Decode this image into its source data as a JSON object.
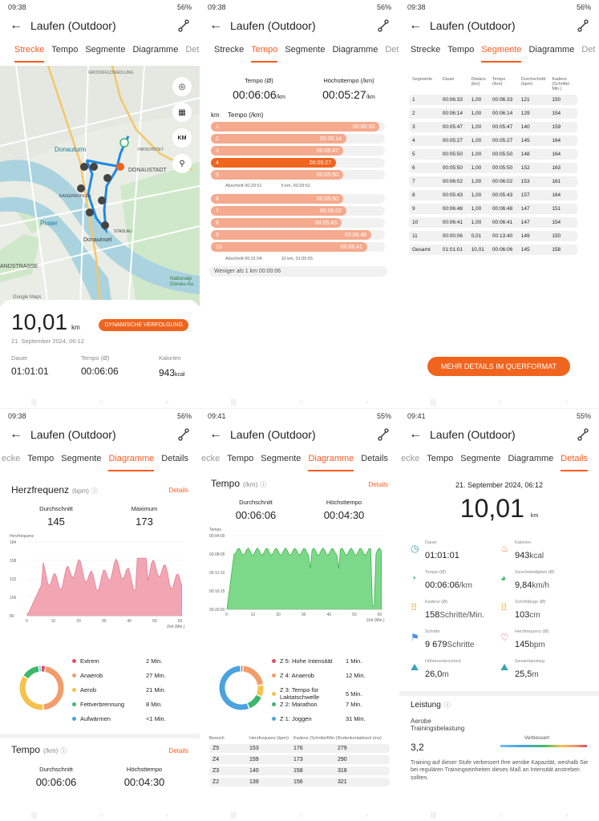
{
  "common": {
    "title": "Laufen (Outdoor)"
  },
  "p1": {
    "status_time": "09:38",
    "status_right": "56%",
    "tabs": [
      "Strecke",
      "Tempo",
      "Segmente",
      "Diagramme",
      "Deta"
    ],
    "map_labels": [
      "GROSSFELDSIEDLUNG",
      "Donauturm",
      "DONAUSTADT",
      "HIRSCHSTET",
      "KAISERMÜHLEN",
      "Prater",
      "STADLAU",
      "Donauinsel",
      "ANDSTRASSE",
      "Nationalp Donau-Au",
      "Google Maps"
    ],
    "map_icon_labels": [
      "KM"
    ],
    "distance": "10,01",
    "distance_unit": "km",
    "track_button": "DYNAMISCHE VERFOLGUNG",
    "date": "21. September 2024, 06:12",
    "stats": [
      {
        "label": "Dauer",
        "value": "01:01:01",
        "unit": ""
      },
      {
        "label": "Tempo (Ø)",
        "value": "00:06:06",
        "unit": ""
      },
      {
        "label": "Kalorien",
        "value": "943",
        "unit": "kcal"
      }
    ]
  },
  "p2": {
    "status_time": "09:38",
    "status_right": "56%",
    "tabs": [
      "Strecke",
      "Tempo",
      "Segmente",
      "Diagramme",
      "Det"
    ],
    "avg_label": "Tempo (Ø)",
    "avg_value": "00:06:06",
    "avg_unit": "/km",
    "max_label": "Höchsttempo (/km)",
    "max_value": "00:05:27",
    "max_unit": "/km",
    "col_km": "km",
    "col_tempo": "Tempo (/km)",
    "rows_a": [
      {
        "n": "1",
        "t": "00:06:33",
        "frac": 0.97
      },
      {
        "n": "2",
        "t": "00:06:14",
        "frac": 0.78
      },
      {
        "n": "3",
        "t": "00:05:47",
        "frac": 0.76
      },
      {
        "n": "4",
        "t": "00:05:27",
        "frac": 0.72
      },
      {
        "n": "5",
        "t": "00:05:50",
        "frac": 0.76
      }
    ],
    "sub_a": [
      "Abschnitt 00:29:51",
      "5 km, 00:29:51"
    ],
    "rows_b": [
      {
        "n": "6",
        "t": "00:05:50",
        "frac": 0.76
      },
      {
        "n": "7",
        "t": "00:06:02",
        "frac": 0.78
      },
      {
        "n": "8",
        "t": "00:05:43",
        "frac": 0.75
      },
      {
        "n": "9",
        "t": "00:06:48",
        "frac": 0.92
      },
      {
        "n": "10",
        "t": "00:06:41",
        "frac": 0.9
      }
    ],
    "sub_b": [
      "Abschnitt 00:31:04",
      "10 km, 01:00:55"
    ],
    "footer": "Weniger als 1 km 00:00:06"
  },
  "p3": {
    "status_time": "09:38",
    "status_right": "56%",
    "tabs": [
      "Strecke",
      "Tempo",
      "Segmente",
      "Diagramme",
      "Det"
    ],
    "headers": [
      "Segmente",
      "Dauer",
      "Distanz (km)",
      "Tempo (/km)",
      "Durchschnitt (bpm)",
      "Kadenz (Schritte/ Min.)"
    ],
    "rows": [
      [
        "1",
        "00:06:33",
        "1,00",
        "00:06:33",
        "121",
        "150"
      ],
      [
        "2",
        "00:06:14",
        "1,00",
        "00:06:14",
        "129",
        "154"
      ],
      [
        "3",
        "00:05:47",
        "1,00",
        "00:05:47",
        "140",
        "159"
      ],
      [
        "4",
        "00:05:27",
        "1,00",
        "00:05:27",
        "145",
        "164"
      ],
      [
        "5",
        "00:05:50",
        "1,00",
        "00:05:50",
        "148",
        "164"
      ],
      [
        "6",
        "00:05:50",
        "1,00",
        "00:05:50",
        "152",
        "163"
      ],
      [
        "7",
        "00:06:02",
        "1,00",
        "00:06:02",
        "153",
        "161"
      ],
      [
        "8",
        "00:05:43",
        "1,00",
        "00:05:43",
        "157",
        "164"
      ],
      [
        "9",
        "00:06:48",
        "1,00",
        "00:06:48",
        "147",
        "151"
      ],
      [
        "10",
        "00:06:41",
        "1,00",
        "00:06:41",
        "147",
        "154"
      ],
      [
        "11",
        "00:00:06",
        "0,01",
        "00:13:40",
        "149",
        "150"
      ],
      [
        "Gesamt",
        "01:01:01",
        "10,01",
        "00:06:06",
        "145",
        "158"
      ]
    ],
    "button": "MEHR DETAILS IM QUERFORMAT"
  },
  "p4": {
    "status_time": "09:38",
    "status_right": "56%",
    "tabs": [
      "ecke",
      "Tempo",
      "Segmente",
      "Diagramme",
      "Details"
    ],
    "hr_title": "Herzfrequenz",
    "hr_unit": "(bpm)",
    "details": "Details",
    "avg_label": "Durchschnitt",
    "avg_value": "145",
    "max_label": "Maximum",
    "max_value": "173",
    "chart_ylabel": "Herzfrequenz",
    "chart_xlabel": "Zeit (Min.)",
    "zones": [
      {
        "name": "Extrem",
        "value": "2 Min.",
        "color": "#e84a5f"
      },
      {
        "name": "Anaerob",
        "value": "27 Min.",
        "color": "#f39c6b"
      },
      {
        "name": "Aerob",
        "value": "21 Min.",
        "color": "#f5c24c"
      },
      {
        "name": "Fettverbrennung",
        "value": "8 Min.",
        "color": "#3db86b"
      },
      {
        "name": "Aufwärmen",
        "value": "<1 Min.",
        "color": "#4aa3df"
      }
    ],
    "tempo_title": "Tempo",
    "tempo_unit": "(/km)",
    "t_avg_label": "Durchschnitt",
    "t_avg_value": "00:06:06",
    "t_max_label": "Höchsttempo",
    "t_max_value": "00:04:30"
  },
  "p5": {
    "status_time": "09:41",
    "status_right": "55%",
    "tabs": [
      "ecke",
      "Tempo",
      "Segmente",
      "Diagramme",
      "Details"
    ],
    "title": "Tempo",
    "unit": "(/km)",
    "details": "Details",
    "avg_label": "Durchschnitt",
    "avg_value": "00:06:06",
    "max_label": "Höchsttempo",
    "max_value": "00:04:30",
    "chart_ylabel": "Tempo",
    "chart_xlabel": "Zeit (Min.)",
    "zones": [
      {
        "name": "Z 5: Hohe Intensität",
        "value": "1 Min.",
        "color": "#e84a5f"
      },
      {
        "name": "Z 4: Anaerob",
        "value": "12 Min.",
        "color": "#f39c6b"
      },
      {
        "name": "Z 3: Tempo für Laktatschwelle",
        "value": "5 Min.",
        "color": "#f5c24c"
      },
      {
        "name": "Z 2: Marathon",
        "value": "7 Min.",
        "color": "#3db86b"
      },
      {
        "name": "Z 1: Joggen",
        "value": "31 Min.",
        "color": "#4aa3df"
      }
    ],
    "table_headers": [
      "Bereich",
      "Herzfrequenz (bpm)",
      "Kadenz (Schritte/Min.)",
      "Bodenkontaktzeit (ms)"
    ],
    "table_rows": [
      [
        "Z5",
        "153",
        "176",
        "279"
      ],
      [
        "Z4",
        "159",
        "173",
        "290"
      ],
      [
        "Z3",
        "140",
        "158",
        "318"
      ],
      [
        "Z2",
        "139",
        "156",
        "321"
      ]
    ]
  },
  "p6": {
    "status_time": "09:41",
    "status_right": "55%",
    "tabs": [
      "ecke",
      "Tempo",
      "Segmente",
      "Diagramme",
      "Details"
    ],
    "date": "21. September 2024, 06:12",
    "distance": "10,01",
    "distance_unit": "km",
    "metrics": [
      {
        "label": "Dauer",
        "value": "01:01:01",
        "unit": "",
        "icon": "clock-icon",
        "color": "#3aa3b8"
      },
      {
        "label": "Kalorien",
        "value": "943",
        "unit": "kcal",
        "icon": "flame-icon",
        "color": "#f0864a"
      },
      {
        "label": "Tempo (Ø)",
        "value": "00:06:06",
        "unit": "/km",
        "icon": "gauge-icon",
        "color": "#3db86b"
      },
      {
        "label": "Geschwindigkeit (Ø)",
        "value": "9,84",
        "unit": "km/h",
        "icon": "speed-icon",
        "color": "#3db86b"
      },
      {
        "label": "Kadenz (Ø)",
        "value": "158",
        "unit": "Schritte/Min.",
        "icon": "footsteps-icon",
        "color": "#e8b43a"
      },
      {
        "label": "Schrittlänge (Ø)",
        "value": "103",
        "unit": "cm",
        "icon": "footsteps-icon",
        "color": "#e8b43a"
      },
      {
        "label": "Schritte",
        "value": "9 679",
        "unit": "Schritte",
        "icon": "steps-icon",
        "color": "#4a8fd6"
      },
      {
        "label": "Herzfrequenz (Ø)",
        "value": "145",
        "unit": "bpm",
        "icon": "heart-icon",
        "color": "#e84a5f"
      },
      {
        "label": "Höhenunterschied",
        "value": "26,0",
        "unit": "m",
        "icon": "elevation-icon",
        "color": "#3aa3b8"
      },
      {
        "label": "Gesamtanstieg",
        "value": "25,5",
        "unit": "m",
        "icon": "ascent-icon",
        "color": "#3aa3b8"
      }
    ],
    "leistung": "Leistung",
    "aerobe_label": "Aerobe Trainingsbelastung",
    "aerobe_value": "3,2",
    "aerobe_status": "Verbessert",
    "aerobe_text": "Training auf dieser Stufe verbessert Ihre aerobe Kapazität, weshalb Sie bei regulären Trainingseinheiten dieses Maß an Intensität anstreben sollten."
  },
  "colors": {
    "accent": "#ff5a1f",
    "hr_fill": "#f2a6b3",
    "tempo_fill": "#7dd98a"
  }
}
